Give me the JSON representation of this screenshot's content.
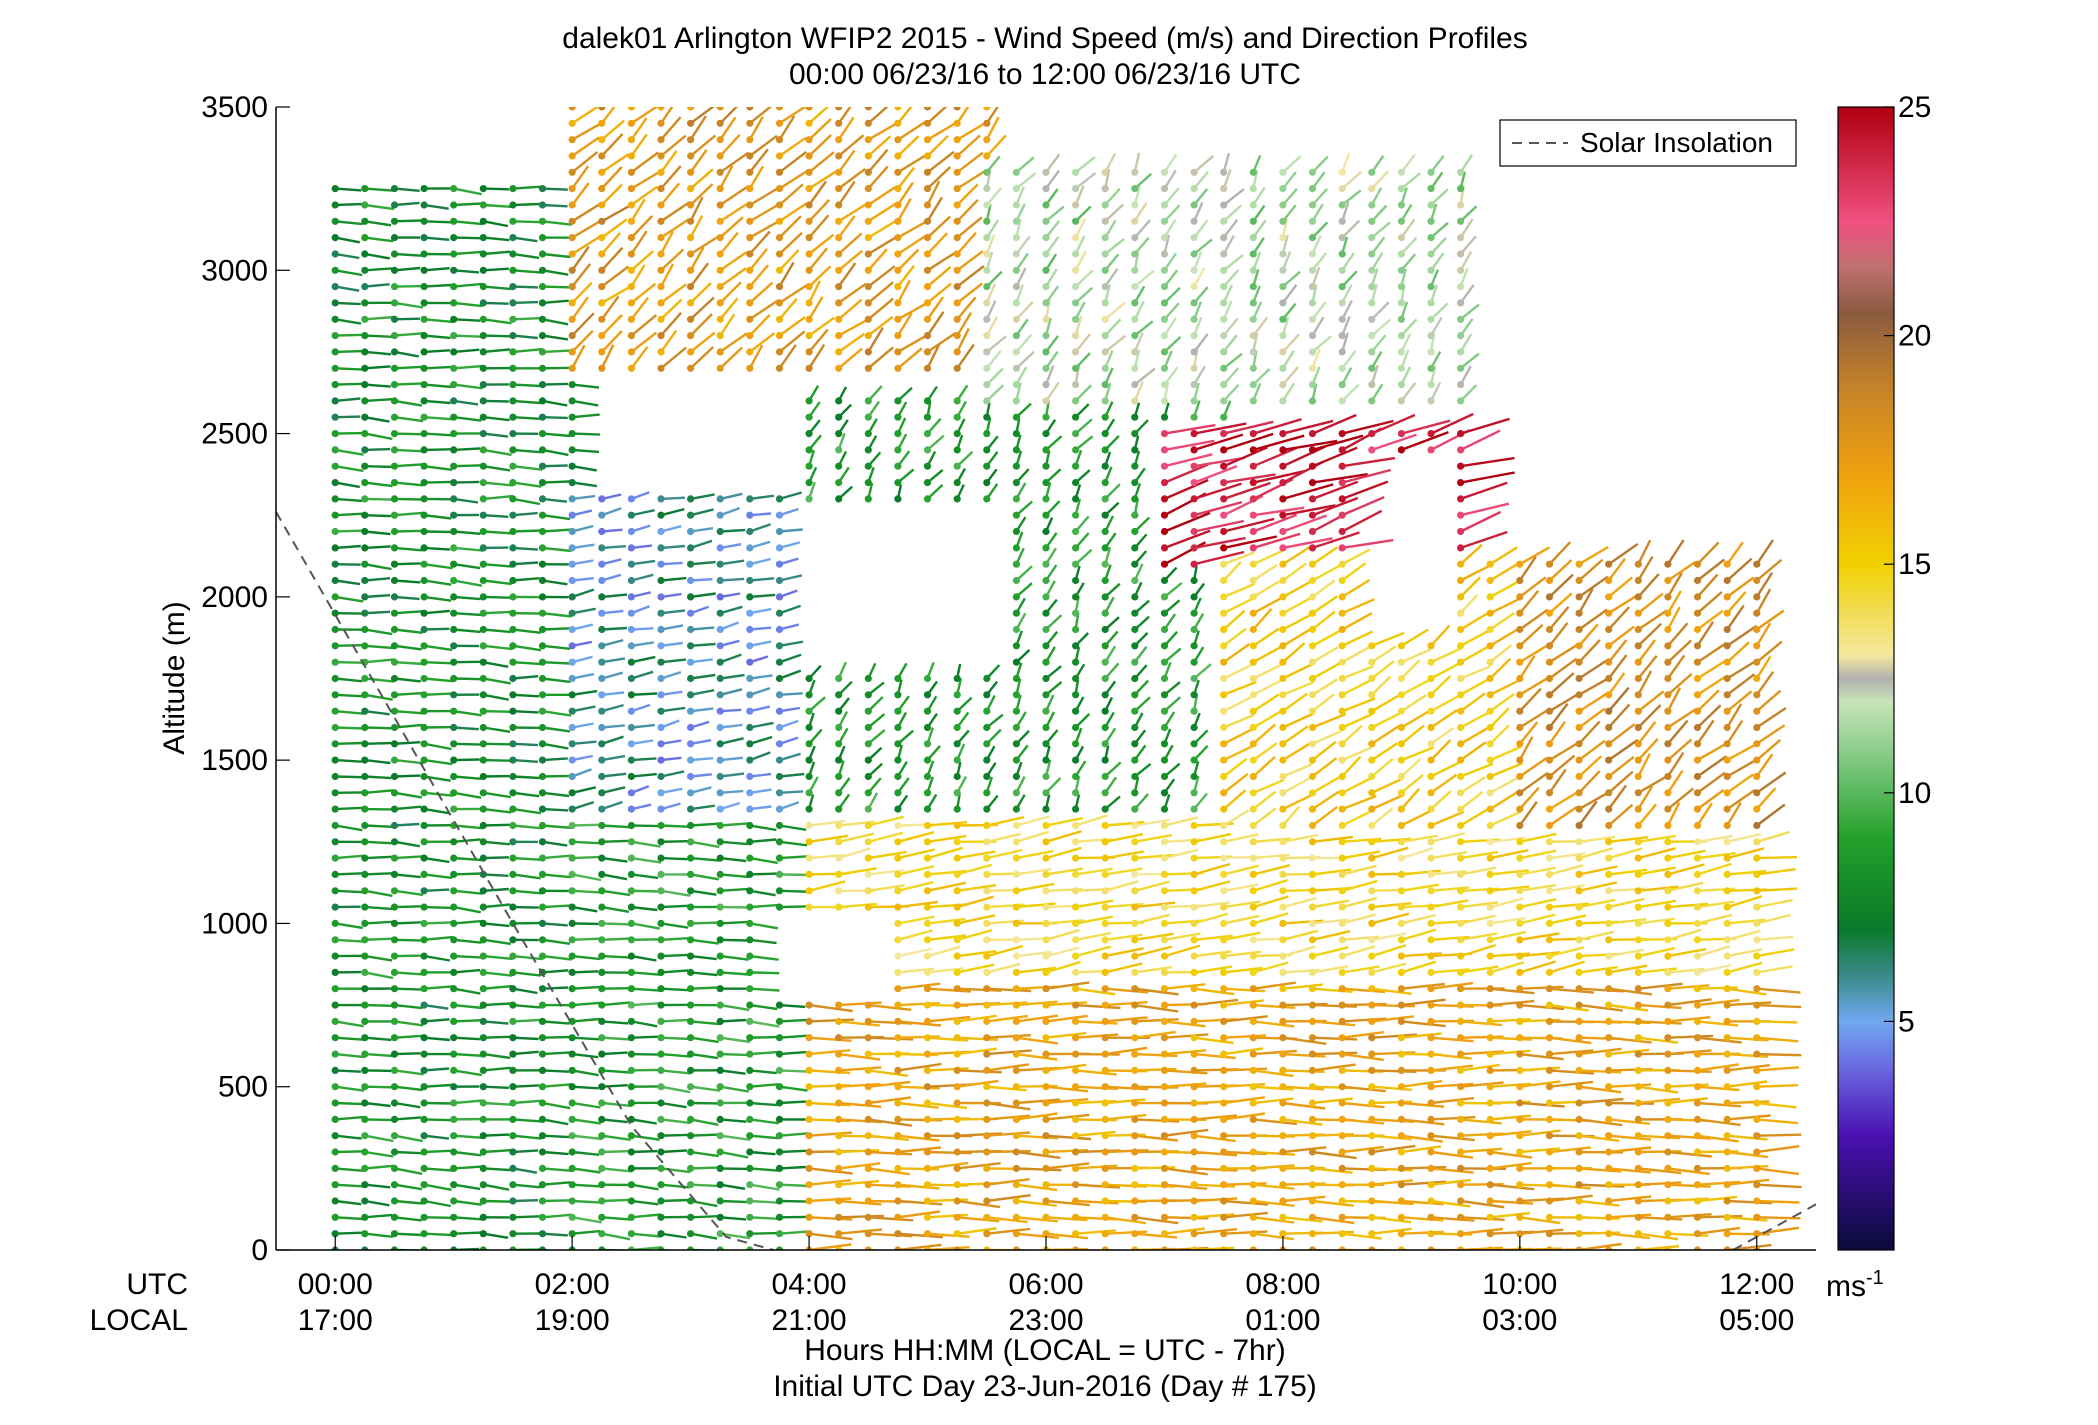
{
  "chart_data": {
    "type": "wind-barb-profile",
    "title": "dalek01 Arlington WFIP2 2015 - Wind Speed (m/s) and Direction Profiles",
    "subtitle": "00:00 06/23/16 to 12:00 06/23/16  UTC",
    "ylabel": "Altitude (m)",
    "xlabel": "Hours HH:MM  (LOCAL = UTC - 7hr)",
    "xlabel2": "Initial UTC Day 23-Jun-2016 (Day # 175)",
    "row_label_utc": "UTC",
    "row_label_local": "LOCAL",
    "x_utc_ticks": [
      "00:00",
      "02:00",
      "04:00",
      "06:00",
      "08:00",
      "10:00",
      "12:00"
    ],
    "x_local_ticks": [
      "17:00",
      "19:00",
      "21:00",
      "23:00",
      "01:00",
      "03:00",
      "05:00"
    ],
    "xlim_hours": [
      -0.5,
      12.5
    ],
    "x_tick_hours": [
      0,
      2,
      4,
      6,
      8,
      10,
      12
    ],
    "ylim": [
      0,
      3500
    ],
    "y_ticks": [
      0,
      500,
      1000,
      1500,
      2000,
      2500,
      3000,
      3500
    ],
    "legend": {
      "label": "Solar Insolation",
      "placement": "top-right"
    },
    "solar_insolation": {
      "x_hours": [
        -0.5,
        0.5,
        1.5,
        2.5,
        3.3,
        3.7
      ],
      "y": [
        2260,
        1630,
        1000,
        380,
        40,
        0
      ],
      "x_hours_right": [
        11.8,
        12.5
      ],
      "y_right": [
        0,
        140
      ]
    },
    "colorbar": {
      "ticks": [
        5,
        10,
        15,
        20,
        25
      ],
      "range": [
        0,
        25
      ],
      "unit": "ms",
      "unit_exp": "-1",
      "stops": [
        {
          "v": 0,
          "c": "#0a0a3a"
        },
        {
          "v": 2.5,
          "c": "#4a10b0"
        },
        {
          "v": 4,
          "c": "#6a6ae0"
        },
        {
          "v": 5,
          "c": "#70a8f0"
        },
        {
          "v": 6,
          "c": "#3a8a8a"
        },
        {
          "v": 7,
          "c": "#0a7a2a"
        },
        {
          "v": 9,
          "c": "#22a02a"
        },
        {
          "v": 11,
          "c": "#90cf90"
        },
        {
          "v": 12,
          "c": "#c8e4b8"
        },
        {
          "v": 12.5,
          "c": "#b0b0b0"
        },
        {
          "v": 13,
          "c": "#f4e8a0"
        },
        {
          "v": 15,
          "c": "#f0d000"
        },
        {
          "v": 17,
          "c": "#f0a010"
        },
        {
          "v": 19,
          "c": "#c0802a"
        },
        {
          "v": 20.5,
          "c": "#8a5a40"
        },
        {
          "v": 21.5,
          "c": "#c07070"
        },
        {
          "v": 22.5,
          "c": "#f05080"
        },
        {
          "v": 25,
          "c": "#b00010"
        }
      ]
    },
    "sampling": {
      "t_start": 0,
      "t_end": 12,
      "t_step": 0.25,
      "z_step": 50
    },
    "regions": [
      {
        "t0": -0.1,
        "t1": 2.0,
        "z0": 0,
        "z1": 3250,
        "spd": 8.0,
        "dir": 275
      },
      {
        "t0": 2.0,
        "t1": 5.5,
        "z0": 2700,
        "z1": 3500,
        "spd": 17.5,
        "dir": 210
      },
      {
        "t0": 2.0,
        "t1": 4.0,
        "z0": 1300,
        "z1": 2300,
        "spd": 5.5,
        "dir": 250
      },
      {
        "t0": 4.0,
        "t1": 7.5,
        "z0": 1300,
        "z1": 2600,
        "spd": 8.5,
        "dir": 200
      },
      {
        "t0": 2.0,
        "t1": 4.0,
        "z0": 0,
        "z1": 1300,
        "spd": 8.5,
        "dir": 275
      },
      {
        "t0": 4.0,
        "t1": 12.0,
        "z0": 0,
        "z1": 850,
        "spd": 17.0,
        "dir": 270
      },
      {
        "t0": 4.0,
        "t1": 12.0,
        "z0": 850,
        "z1": 1300,
        "spd": 14.5,
        "dir": 255
      },
      {
        "t0": 7.0,
        "t1": 9.5,
        "z0": 2100,
        "z1": 2500,
        "spd": 24.0,
        "dir": 240
      },
      {
        "t0": 7.5,
        "t1": 10.0,
        "z0": 1300,
        "z1": 2100,
        "spd": 15.0,
        "dir": 220
      },
      {
        "t0": 10.0,
        "t1": 12.0,
        "z0": 1300,
        "z1": 2100,
        "spd": 18.0,
        "dir": 210
      },
      {
        "t0": 5.5,
        "t1": 9.5,
        "z0": 2600,
        "z1": 3300,
        "spd": 11.5,
        "dir": 200
      }
    ],
    "gaps": [
      {
        "t0": 4.0,
        "t1": 5.5,
        "z0": 1800,
        "z1": 2250
      },
      {
        "t0": 3.7,
        "t1": 4.6,
        "z0": 800,
        "z1": 1000
      },
      {
        "t0": 8.7,
        "t1": 9.3,
        "z0": 1900,
        "z1": 2400
      },
      {
        "t0": 10.4,
        "t1": 12.5,
        "z0": 2300,
        "z1": 3500
      },
      {
        "t0": 9.6,
        "t1": 12.5,
        "z0": 2750,
        "z1": 3500
      }
    ]
  }
}
